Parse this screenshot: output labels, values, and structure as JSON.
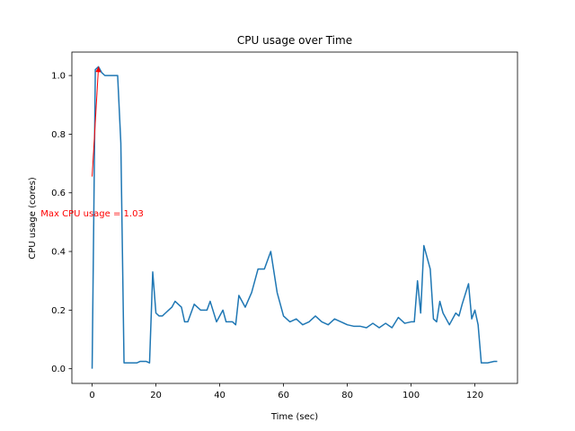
{
  "chart_data": {
    "type": "line",
    "title": "CPU usage over Time",
    "xlabel": "Time (sec)",
    "ylabel": "CPU usage (cores)",
    "xlim": [
      -6.35,
      133.35
    ],
    "ylim": [
      -0.05,
      1.08
    ],
    "xticks": [
      0,
      20,
      40,
      60,
      80,
      100,
      120
    ],
    "yticks": [
      0.0,
      0.2,
      0.4,
      0.6,
      0.8,
      1.0
    ],
    "xtick_labels": [
      "0",
      "20",
      "40",
      "60",
      "80",
      "100",
      "120"
    ],
    "ytick_labels": [
      "0.0",
      "0.2",
      "0.4",
      "0.6",
      "0.8",
      "1.0"
    ],
    "grid": false,
    "line_color": "#1f77b4",
    "series": [
      {
        "x": [
          0,
          0.5,
          1,
          2,
          3,
          4,
          5,
          6,
          7,
          8,
          9,
          10,
          11,
          12,
          13,
          14,
          15,
          16,
          17,
          18,
          19,
          20,
          21,
          22,
          23,
          24,
          25,
          26,
          28,
          29,
          30,
          32,
          34,
          36,
          37,
          39,
          41,
          42,
          44,
          45,
          46,
          48,
          50,
          52,
          54,
          56,
          58,
          60,
          62,
          64,
          66,
          68,
          70,
          72,
          74,
          76,
          78,
          80,
          82,
          84,
          86,
          88,
          90,
          92,
          94,
          96,
          98,
          100,
          101,
          102,
          103,
          104,
          106,
          107,
          108,
          109,
          110,
          112,
          114,
          115,
          116,
          118,
          119,
          120,
          121,
          122,
          124,
          126,
          127
        ],
        "values": [
          0.0,
          0.5,
          1.02,
          1.03,
          1.01,
          1.0,
          1.0,
          1.0,
          1.0,
          1.0,
          0.77,
          0.02,
          0.02,
          0.02,
          0.02,
          0.02,
          0.025,
          0.025,
          0.025,
          0.02,
          0.33,
          0.19,
          0.18,
          0.18,
          0.19,
          0.2,
          0.21,
          0.23,
          0.21,
          0.16,
          0.16,
          0.22,
          0.2,
          0.2,
          0.23,
          0.16,
          0.2,
          0.16,
          0.16,
          0.15,
          0.25,
          0.21,
          0.26,
          0.34,
          0.34,
          0.4,
          0.26,
          0.18,
          0.16,
          0.17,
          0.15,
          0.16,
          0.18,
          0.16,
          0.15,
          0.17,
          0.16,
          0.15,
          0.145,
          0.145,
          0.14,
          0.155,
          0.14,
          0.155,
          0.14,
          0.175,
          0.155,
          0.16,
          0.16,
          0.3,
          0.19,
          0.42,
          0.34,
          0.17,
          0.16,
          0.23,
          0.19,
          0.15,
          0.19,
          0.18,
          0.22,
          0.29,
          0.17,
          0.2,
          0.15,
          0.02,
          0.02,
          0.025,
          0.025
        ]
      }
    ],
    "annotation": {
      "text": "Max CPU usage = 1.03",
      "color": "#ff0000",
      "point": [
        2,
        1.03
      ],
      "text_position": [
        0,
        0.53
      ]
    }
  }
}
